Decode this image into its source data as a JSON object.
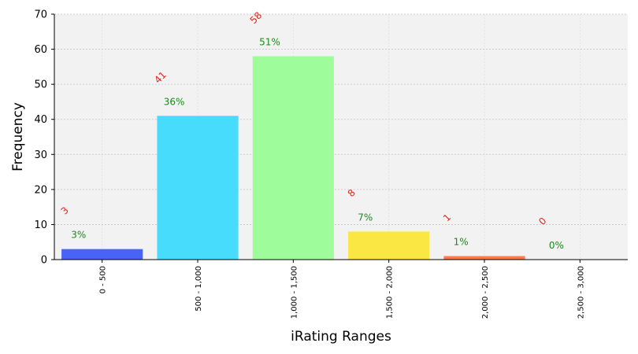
{
  "chart_data": {
    "type": "bar",
    "title": "",
    "xlabel": "iRating Ranges",
    "ylabel": "Frequency",
    "ylim": [
      0,
      70
    ],
    "yticks": [
      0,
      10,
      20,
      30,
      40,
      50,
      60,
      70
    ],
    "grid": true,
    "categories": [
      "0 - 500",
      "500 - 1,000",
      "1,000 - 1,500",
      "1,500 - 2,000",
      "2,000 - 2,500",
      "2,500 - 3,000"
    ],
    "values": [
      3,
      41,
      58,
      8,
      1,
      0
    ],
    "count_labels": [
      "3",
      "41",
      "58",
      "8",
      "1",
      "0"
    ],
    "percent_labels": [
      "3%",
      "36%",
      "51%",
      "7%",
      "1%",
      "0%"
    ],
    "bar_colors": [
      "#4a63f7",
      "#48dcfc",
      "#9ffc9b",
      "#fbe744",
      "#fa7a4a",
      "#e8503a"
    ],
    "count_label_color": "#e8241c",
    "percent_label_color": "#1a8a1a",
    "plot_background": "#f2f2f2"
  }
}
